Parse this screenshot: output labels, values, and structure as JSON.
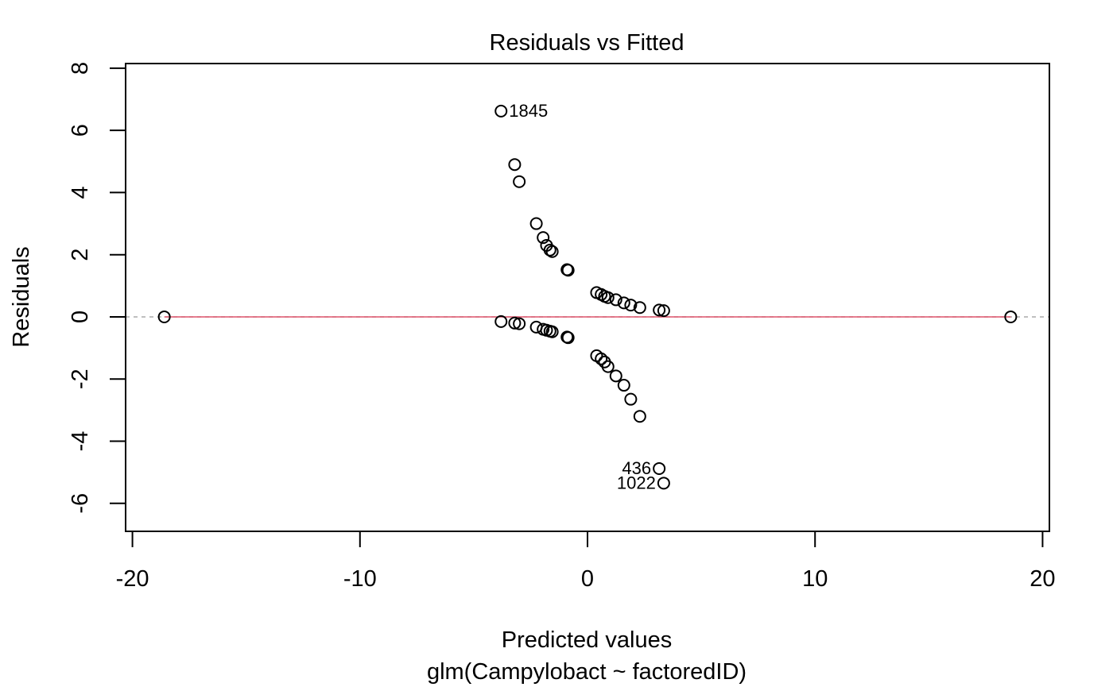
{
  "chart_data": {
    "type": "scatter",
    "title": "Residuals vs Fitted",
    "xlabel": "Predicted values",
    "subtitle": "glm(Campylobact ~ factoredID)",
    "ylabel": "Residuals",
    "xlim": [
      -20.3,
      20.3
    ],
    "ylim": [
      -6.9,
      8.15
    ],
    "xticks": [
      -20,
      -10,
      0,
      10,
      20
    ],
    "xtick_labels": [
      "-20",
      "-10",
      "0",
      "10",
      "20"
    ],
    "yticks": [
      -6,
      -4,
      -2,
      0,
      2,
      4,
      6,
      8
    ],
    "ytick_labels": [
      "-6",
      "-4",
      "-2",
      "0",
      "2",
      "4",
      "6",
      "8"
    ],
    "grid": false,
    "reference_line": {
      "y": 0,
      "color": "#AAAAAA",
      "style": "dashed"
    },
    "smooth_line": {
      "color": "#DF536B",
      "x": [
        -18.6,
        18.6
      ],
      "y": [
        0,
        0
      ]
    },
    "point_color": "#000000",
    "points": [
      {
        "x": -18.6,
        "y": 0.0
      },
      {
        "x": 18.6,
        "y": 0.0
      },
      {
        "x": -3.8,
        "y": 6.62
      },
      {
        "x": -3.2,
        "y": 4.9
      },
      {
        "x": -3.0,
        "y": 4.35
      },
      {
        "x": -2.25,
        "y": 3.0
      },
      {
        "x": -1.95,
        "y": 2.55
      },
      {
        "x": -1.8,
        "y": 2.3
      },
      {
        "x": -1.65,
        "y": 2.15
      },
      {
        "x": -1.55,
        "y": 2.1
      },
      {
        "x": -0.9,
        "y": 1.52
      },
      {
        "x": -0.85,
        "y": 1.5
      },
      {
        "x": 0.4,
        "y": 0.78
      },
      {
        "x": 0.6,
        "y": 0.72
      },
      {
        "x": 0.75,
        "y": 0.66
      },
      {
        "x": 0.9,
        "y": 0.62
      },
      {
        "x": 1.25,
        "y": 0.55
      },
      {
        "x": 1.6,
        "y": 0.45
      },
      {
        "x": 1.9,
        "y": 0.38
      },
      {
        "x": 2.3,
        "y": 0.3
      },
      {
        "x": 3.15,
        "y": 0.22
      },
      {
        "x": 3.35,
        "y": 0.2
      },
      {
        "x": -3.8,
        "y": -0.15
      },
      {
        "x": -3.2,
        "y": -0.2
      },
      {
        "x": -3.0,
        "y": -0.22
      },
      {
        "x": -2.25,
        "y": -0.33
      },
      {
        "x": -1.95,
        "y": -0.4
      },
      {
        "x": -1.8,
        "y": -0.43
      },
      {
        "x": -1.65,
        "y": -0.46
      },
      {
        "x": -1.55,
        "y": -0.48
      },
      {
        "x": -0.9,
        "y": -0.65
      },
      {
        "x": -0.85,
        "y": -0.67
      },
      {
        "x": 0.4,
        "y": -1.25
      },
      {
        "x": 0.6,
        "y": -1.35
      },
      {
        "x": 0.75,
        "y": -1.45
      },
      {
        "x": 0.9,
        "y": -1.6
      },
      {
        "x": 1.25,
        "y": -1.9
      },
      {
        "x": 1.6,
        "y": -2.2
      },
      {
        "x": 1.9,
        "y": -2.65
      },
      {
        "x": 2.3,
        "y": -3.2
      },
      {
        "x": 3.15,
        "y": -4.88
      },
      {
        "x": 3.35,
        "y": -5.35
      }
    ],
    "annotations": [
      {
        "label": "1845",
        "x": -3.8,
        "y": 6.62,
        "side": "right"
      },
      {
        "label": "436",
        "x": 3.15,
        "y": -4.88,
        "side": "left"
      },
      {
        "label": "1022",
        "x": 3.35,
        "y": -5.35,
        "side": "left"
      }
    ]
  }
}
